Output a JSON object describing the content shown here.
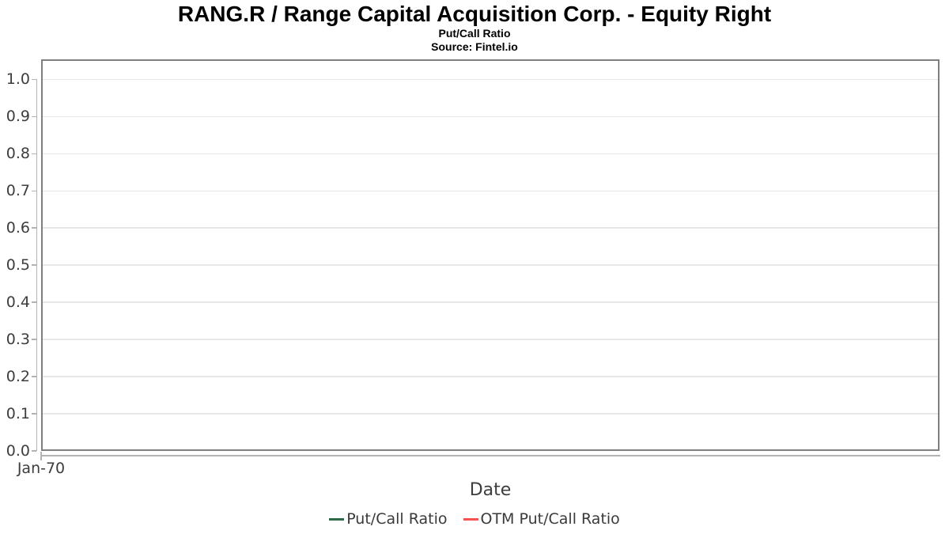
{
  "header": {
    "title": "RANG.R / Range Capital Acquisition Corp. - Equity Right",
    "subtitle": "Put/Call Ratio",
    "source": "Source: Fintel.io"
  },
  "chart_data": {
    "type": "line",
    "title": "RANG.R / Range Capital Acquisition Corp. - Equity Right",
    "subtitle": "Put/Call Ratio",
    "source": "Source: Fintel.io",
    "xlabel": "Date",
    "ylabel": "",
    "x_ticks": [
      "Jan-70"
    ],
    "y_ticks": [
      {
        "value": 0.0,
        "label": "0.0"
      },
      {
        "value": 0.1,
        "label": "0.1"
      },
      {
        "value": 0.2,
        "label": "0.2"
      },
      {
        "value": 0.3,
        "label": "0.3"
      },
      {
        "value": 0.4,
        "label": "0.4"
      },
      {
        "value": 0.5,
        "label": "0.5"
      },
      {
        "value": 0.6,
        "label": "0.6"
      },
      {
        "value": 0.7,
        "label": "0.7"
      },
      {
        "value": 0.8,
        "label": "0.8"
      },
      {
        "value": 0.9,
        "label": "0.9"
      },
      {
        "value": 1.0,
        "label": "1.0"
      }
    ],
    "ylim": [
      0,
      1.054
    ],
    "grid": "horizontal",
    "legend_position": "bottom-center",
    "series": [
      {
        "name": "Put/Call Ratio",
        "color": "#2d6a4a",
        "x": [],
        "y": []
      },
      {
        "name": "OTM Put/Call Ratio",
        "color": "#f4534f",
        "x": [],
        "y": []
      }
    ]
  },
  "colors": {
    "frame": "#7f7f7f",
    "gridline": "#e7e7e7",
    "axis_line": "#b3b3b3",
    "tick_text": "#3d3d3d",
    "title_text": "#000000",
    "put_call_series": "#2d6a4a",
    "otm_put_call_series": "#f4534f"
  }
}
